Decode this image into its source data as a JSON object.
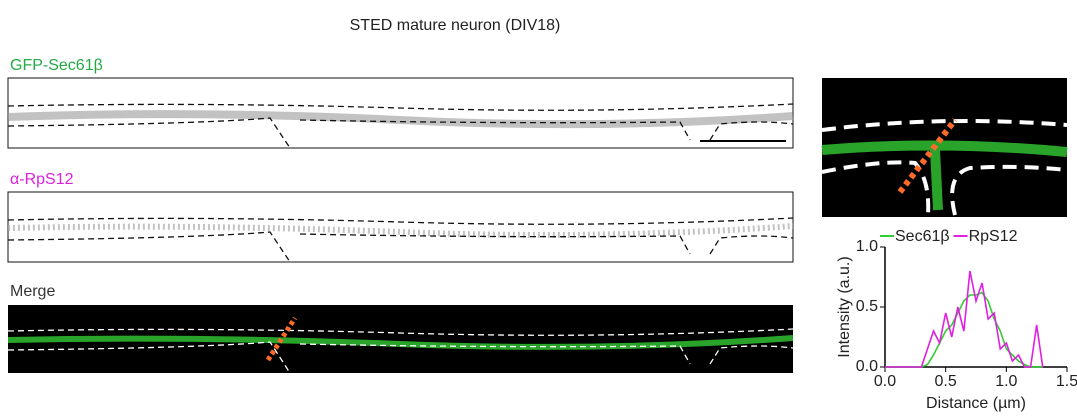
{
  "figure": {
    "title": "STED mature neuron (DIV18)",
    "panel_labels": [
      "GFP-Sec61β",
      "α-RpS12",
      "Merge"
    ]
  },
  "chart_data": {
    "type": "line",
    "x": [
      0,
      0.05,
      0.1,
      0.15,
      0.2,
      0.25,
      0.3,
      0.35,
      0.4,
      0.45,
      0.5,
      0.55,
      0.6,
      0.65,
      0.7,
      0.75,
      0.8,
      0.85,
      0.9,
      0.95,
      1.0,
      1.05,
      1.1,
      1.15,
      1.2,
      1.25,
      1.3
    ],
    "series": [
      {
        "name": "Sec61β",
        "color": "#33cc33",
        "values": [
          0,
          0,
          0,
          0,
          0,
          0,
          0,
          0.02,
          0.1,
          0.2,
          0.3,
          0.35,
          0.45,
          0.55,
          0.6,
          0.6,
          0.62,
          0.55,
          0.4,
          0.3,
          0.15,
          0.1,
          0.05,
          0.02,
          0,
          0,
          0
        ]
      },
      {
        "name": "RpS12",
        "color": "#e020e0",
        "values": [
          0,
          0,
          0,
          0,
          0,
          0,
          0,
          0.15,
          0.3,
          0.2,
          0.45,
          0.25,
          0.5,
          0.3,
          0.8,
          0.55,
          0.7,
          0.4,
          0.45,
          0.15,
          0.2,
          0.05,
          0.1,
          0,
          0,
          0.35,
          0
        ]
      }
    ],
    "xlabel": "Distance (µm)",
    "ylabel": "Intensity (a.u.)",
    "xlim": [
      0,
      1.5
    ],
    "ylim": [
      0,
      1
    ],
    "xticks": [
      {
        "value": 0,
        "label": "0.0"
      },
      {
        "value": 0.5,
        "label": "0.5"
      },
      {
        "value": 1,
        "label": "1.0"
      },
      {
        "value": 1.5,
        "label": "1.5"
      }
    ],
    "yticks": [
      {
        "value": 0,
        "label": "0.0"
      },
      {
        "value": 0.5,
        "label": "0.5"
      },
      {
        "value": 1,
        "label": "1.0"
      }
    ]
  }
}
